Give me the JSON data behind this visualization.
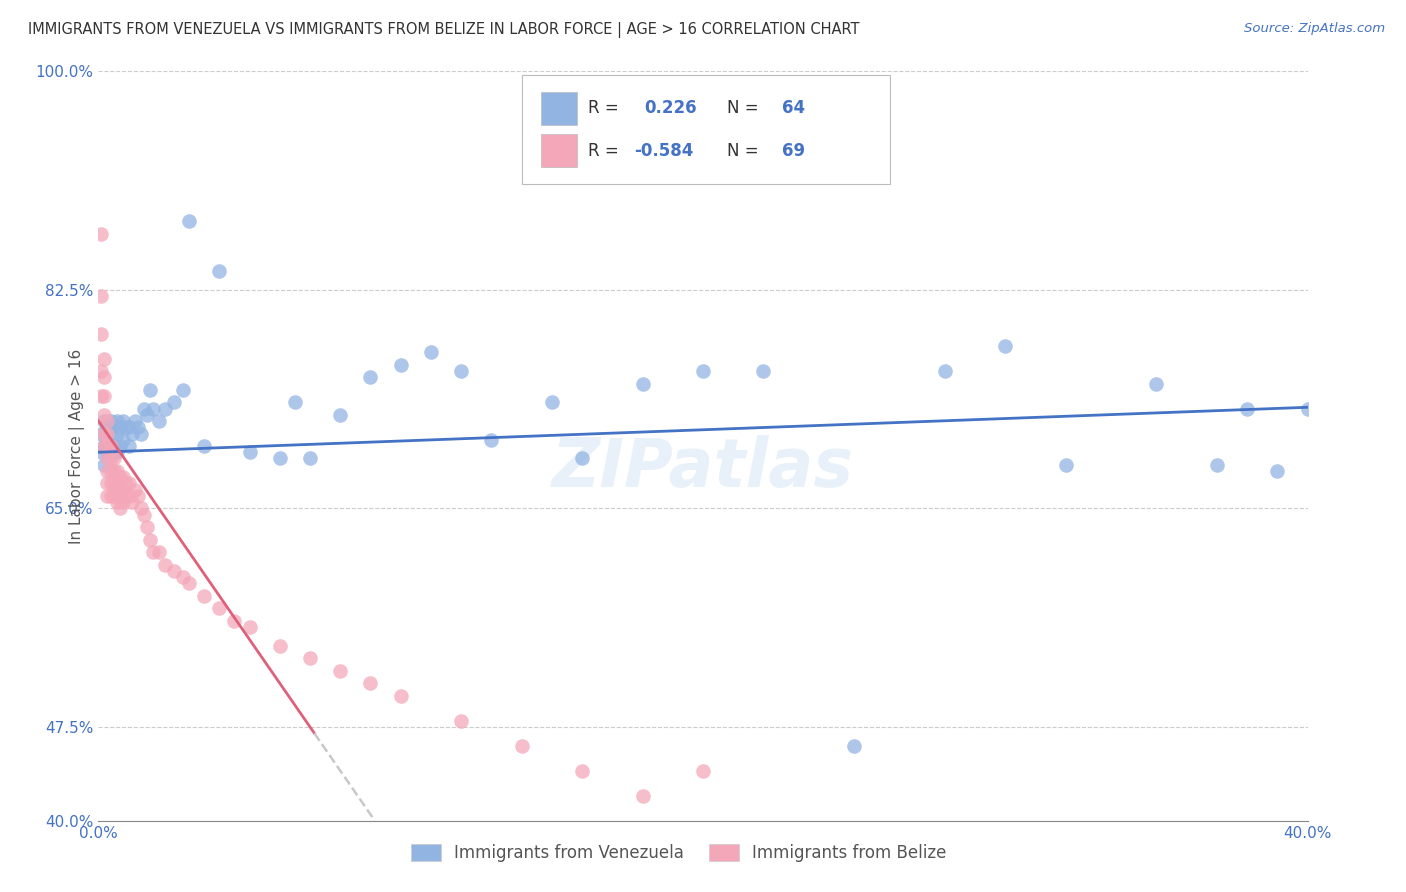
{
  "title": "IMMIGRANTS FROM VENEZUELA VS IMMIGRANTS FROM BELIZE IN LABOR FORCE | AGE > 16 CORRELATION CHART",
  "source": "Source: ZipAtlas.com",
  "ylabel": "In Labor Force | Age > 16",
  "xlim": [
    0.0,
    0.4
  ],
  "ylim": [
    0.4,
    1.0
  ],
  "ytick_vals": [
    0.4,
    0.475,
    0.65,
    0.825,
    1.0
  ],
  "ytick_labels": [
    "40.0%",
    "47.5%",
    "65.0%",
    "82.5%",
    "100.0%"
  ],
  "label1": "Immigrants from Venezuela",
  "label2": "Immigrants from Belize",
  "color1": "#92b4e3",
  "color2": "#f4a7b9",
  "line_color1": "#4472c4",
  "line_color2": "#e0607a",
  "line_color2_ext": "#c8c8c8",
  "background": "#ffffff",
  "grid_color": "#cccccc",
  "title_color": "#333333",
  "axis_color": "#4472c4",
  "r1": "0.226",
  "n1": "64",
  "r2": "-0.584",
  "n2": "69",
  "venezuela_x": [
    0.001,
    0.001,
    0.002,
    0.002,
    0.002,
    0.003,
    0.003,
    0.003,
    0.003,
    0.004,
    0.004,
    0.004,
    0.005,
    0.005,
    0.005,
    0.006,
    0.006,
    0.006,
    0.007,
    0.007,
    0.008,
    0.008,
    0.009,
    0.01,
    0.01,
    0.011,
    0.012,
    0.013,
    0.014,
    0.015,
    0.016,
    0.017,
    0.018,
    0.02,
    0.022,
    0.025,
    0.028,
    0.03,
    0.035,
    0.04,
    0.05,
    0.06,
    0.065,
    0.07,
    0.08,
    0.09,
    0.1,
    0.11,
    0.12,
    0.13,
    0.15,
    0.16,
    0.18,
    0.2,
    0.22,
    0.25,
    0.28,
    0.3,
    0.32,
    0.35,
    0.37,
    0.38,
    0.39,
    0.4
  ],
  "venezuela_y": [
    0.695,
    0.71,
    0.7,
    0.72,
    0.685,
    0.705,
    0.695,
    0.715,
    0.7,
    0.71,
    0.7,
    0.72,
    0.695,
    0.715,
    0.7,
    0.71,
    0.695,
    0.72,
    0.715,
    0.7,
    0.72,
    0.705,
    0.715,
    0.7,
    0.715,
    0.71,
    0.72,
    0.715,
    0.71,
    0.73,
    0.725,
    0.745,
    0.73,
    0.72,
    0.73,
    0.735,
    0.745,
    0.88,
    0.7,
    0.84,
    0.695,
    0.69,
    0.735,
    0.69,
    0.725,
    0.755,
    0.765,
    0.775,
    0.76,
    0.705,
    0.735,
    0.69,
    0.75,
    0.76,
    0.76,
    0.46,
    0.76,
    0.78,
    0.685,
    0.75,
    0.685,
    0.73,
    0.68,
    0.73
  ],
  "belize_x": [
    0.001,
    0.001,
    0.001,
    0.001,
    0.001,
    0.002,
    0.002,
    0.002,
    0.002,
    0.002,
    0.002,
    0.003,
    0.003,
    0.003,
    0.003,
    0.003,
    0.003,
    0.003,
    0.004,
    0.004,
    0.004,
    0.004,
    0.004,
    0.005,
    0.005,
    0.005,
    0.005,
    0.006,
    0.006,
    0.006,
    0.006,
    0.007,
    0.007,
    0.007,
    0.007,
    0.008,
    0.008,
    0.008,
    0.009,
    0.009,
    0.01,
    0.01,
    0.011,
    0.012,
    0.013,
    0.014,
    0.015,
    0.016,
    0.017,
    0.018,
    0.02,
    0.022,
    0.025,
    0.028,
    0.03,
    0.035,
    0.04,
    0.045,
    0.05,
    0.06,
    0.07,
    0.08,
    0.09,
    0.1,
    0.12,
    0.14,
    0.16,
    0.18,
    0.2
  ],
  "belize_y": [
    0.87,
    0.82,
    0.79,
    0.76,
    0.74,
    0.77,
    0.755,
    0.74,
    0.725,
    0.71,
    0.7,
    0.72,
    0.71,
    0.7,
    0.69,
    0.68,
    0.67,
    0.66,
    0.7,
    0.69,
    0.68,
    0.67,
    0.66,
    0.69,
    0.68,
    0.67,
    0.66,
    0.68,
    0.675,
    0.665,
    0.655,
    0.675,
    0.665,
    0.66,
    0.65,
    0.675,
    0.665,
    0.655,
    0.67,
    0.66,
    0.67,
    0.66,
    0.655,
    0.665,
    0.66,
    0.65,
    0.645,
    0.635,
    0.625,
    0.615,
    0.615,
    0.605,
    0.6,
    0.595,
    0.59,
    0.58,
    0.57,
    0.56,
    0.555,
    0.54,
    0.53,
    0.52,
    0.51,
    0.5,
    0.48,
    0.46,
    0.44,
    0.42,
    0.44
  ]
}
